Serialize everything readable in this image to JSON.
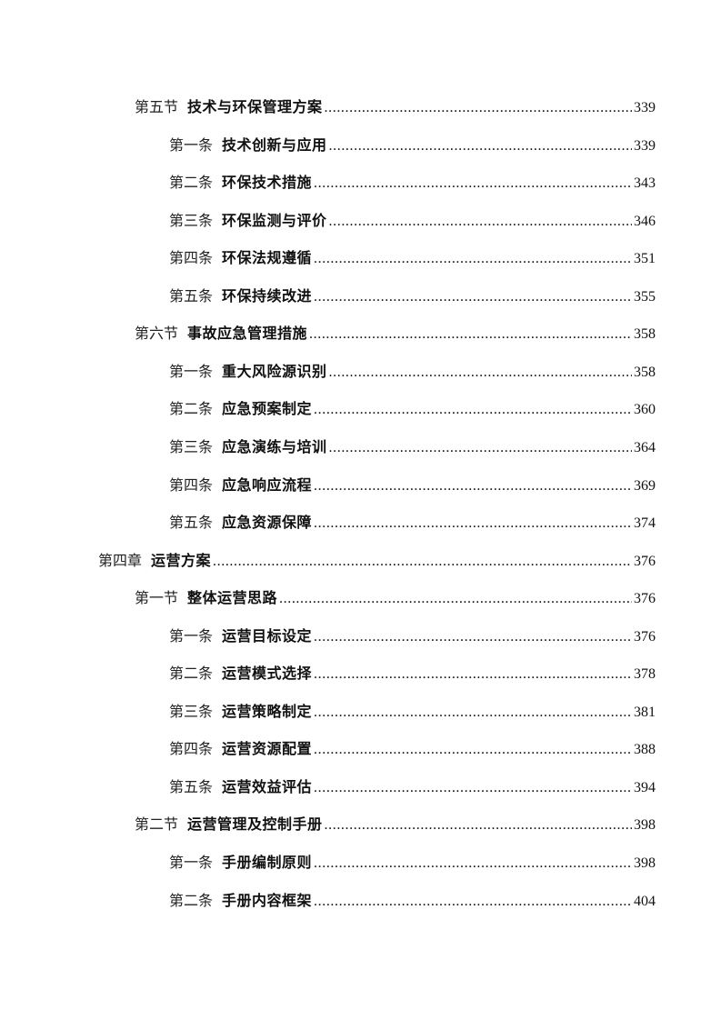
{
  "toc": [
    {
      "level": 2,
      "prefix": "第五节",
      "title": "技术与环保管理方案",
      "page": "339"
    },
    {
      "level": 3,
      "prefix": "第一条",
      "title": "技术创新与应用",
      "page": "339"
    },
    {
      "level": 3,
      "prefix": "第二条",
      "title": "环保技术措施",
      "page": "343"
    },
    {
      "level": 3,
      "prefix": "第三条",
      "title": "环保监测与评价",
      "page": "346"
    },
    {
      "level": 3,
      "prefix": "第四条",
      "title": "环保法规遵循",
      "page": "351"
    },
    {
      "level": 3,
      "prefix": "第五条",
      "title": "环保持续改进",
      "page": "355"
    },
    {
      "level": 2,
      "prefix": "第六节",
      "title": "事故应急管理措施",
      "page": "358"
    },
    {
      "level": 3,
      "prefix": "第一条",
      "title": "重大风险源识别",
      "page": "358"
    },
    {
      "level": 3,
      "prefix": "第二条",
      "title": "应急预案制定",
      "page": "360"
    },
    {
      "level": 3,
      "prefix": "第三条",
      "title": "应急演练与培训",
      "page": "364"
    },
    {
      "level": 3,
      "prefix": "第四条",
      "title": "应急响应流程",
      "page": "369"
    },
    {
      "level": 3,
      "prefix": "第五条",
      "title": "应急资源保障",
      "page": "374"
    },
    {
      "level": 1,
      "prefix": "第四章",
      "title": "运营方案",
      "page": "376"
    },
    {
      "level": 2,
      "prefix": "第一节",
      "title": "整体运营思路",
      "page": "376"
    },
    {
      "level": 3,
      "prefix": "第一条",
      "title": "运营目标设定",
      "page": "376"
    },
    {
      "level": 3,
      "prefix": "第二条",
      "title": "运营模式选择",
      "page": "378"
    },
    {
      "level": 3,
      "prefix": "第三条",
      "title": "运营策略制定",
      "page": "381"
    },
    {
      "level": 3,
      "prefix": "第四条",
      "title": "运营资源配置",
      "page": "388"
    },
    {
      "level": 3,
      "prefix": "第五条",
      "title": "运营效益评估",
      "page": "394"
    },
    {
      "level": 2,
      "prefix": "第二节",
      "title": "运营管理及控制手册",
      "page": "398"
    },
    {
      "level": 3,
      "prefix": "第一条",
      "title": "手册编制原则",
      "page": "398"
    },
    {
      "level": 3,
      "prefix": "第二条",
      "title": "手册内容框架",
      "page": "404"
    }
  ]
}
